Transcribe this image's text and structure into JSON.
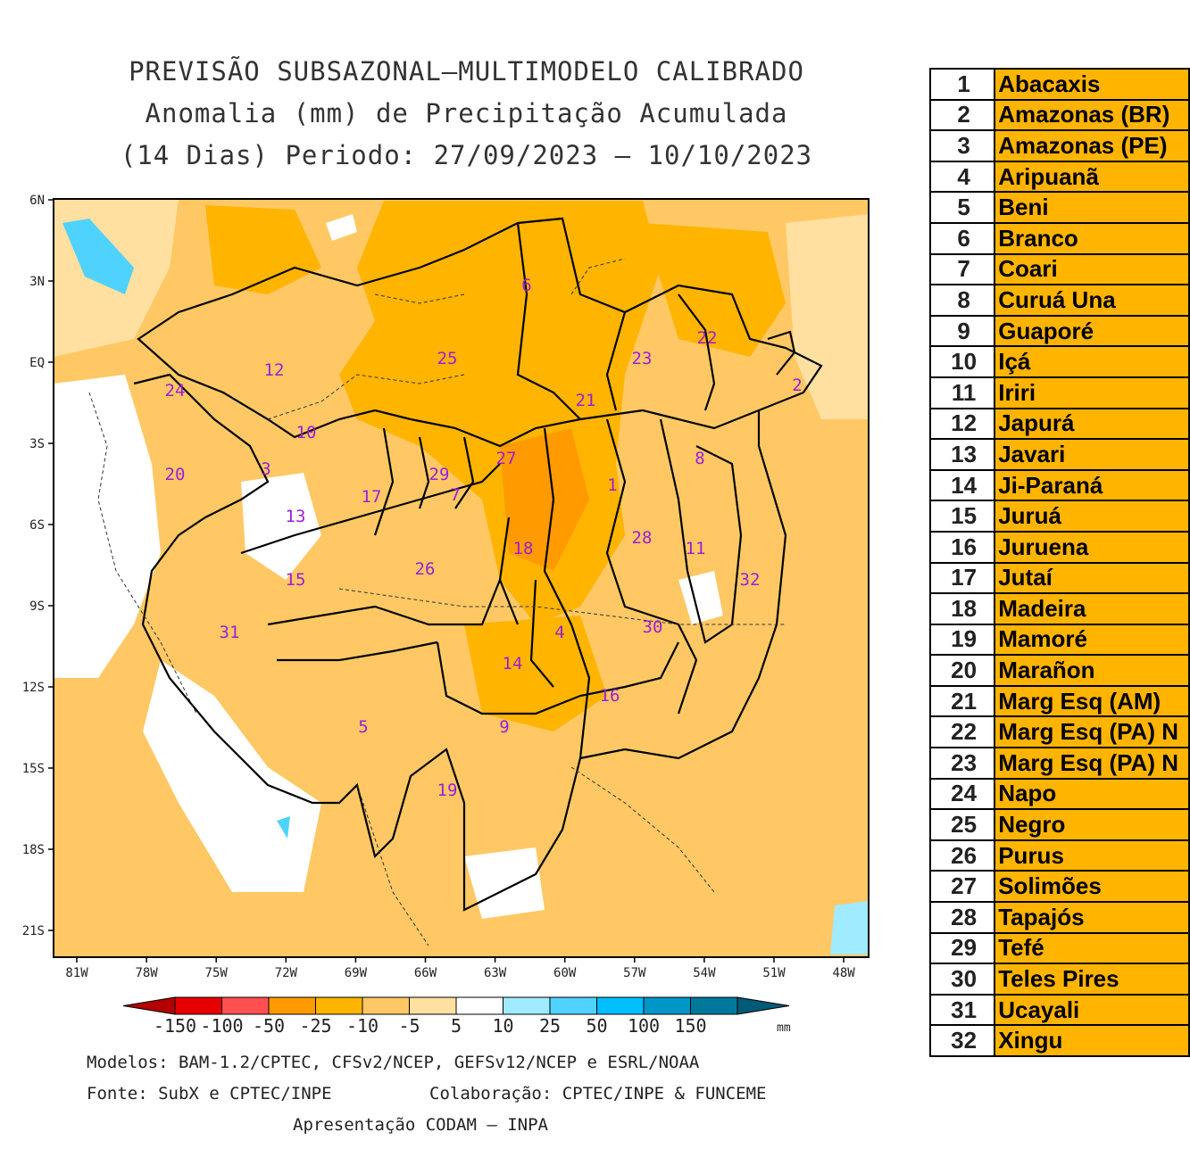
{
  "title": {
    "line1": "PREVISÃO SUBSAZONAL–MULTIMODELO CALIBRADO",
    "line2": "Anomalia (mm) de Precipitação Acumulada",
    "line3": "(14 Dias) Periodo: 27/09/2023 – 10/10/2023"
  },
  "map": {
    "lat_labels": [
      "6N",
      "3N",
      "EQ",
      "3S",
      "6S",
      "9S",
      "12S",
      "15S",
      "18S",
      "21S"
    ],
    "lon_labels": [
      "81W",
      "78W",
      "75W",
      "72W",
      "69W",
      "66W",
      "63W",
      "60W",
      "57W",
      "54W",
      "51W",
      "48W"
    ],
    "basin_labels": [
      "1",
      "2",
      "3",
      "4",
      "5",
      "6",
      "7",
      "8",
      "9",
      "10",
      "11",
      "12",
      "13",
      "14",
      "15",
      "16",
      "17",
      "18",
      "19",
      "20",
      "21",
      "22",
      "23",
      "24",
      "25",
      "26",
      "27",
      "28",
      "29",
      "30",
      "31",
      "32"
    ],
    "label_color": "#9B1FD6"
  },
  "colorbar": {
    "ticks": [
      "-150",
      "-100",
      "-50",
      "-25",
      "-10",
      "-5",
      "5",
      "10",
      "25",
      "50",
      "100",
      "150"
    ],
    "unit": "mm",
    "colors": [
      "#B40000",
      "#E60000",
      "#FF5050",
      "#FF9A00",
      "#FFB400",
      "#FFC864",
      "#FFE0A0",
      "#FFFFFF",
      "#A0EBFF",
      "#50D2FF",
      "#00BEFF",
      "#0096C8",
      "#00789C",
      "#005A78"
    ]
  },
  "footer": {
    "models": "Modelos: BAM-1.2/CPTEC, CFSv2/NCEP, GEFSv12/NCEP e ESRL/NOAA",
    "source": "Fonte: SubX e CPTEC/INPE",
    "collab": "Colaboração: CPTEC/INPE & FUNCEME",
    "presentation": "Apresentação CODAM – INPA"
  },
  "legend": [
    {
      "num": "1",
      "name": "Abacaxis"
    },
    {
      "num": "2",
      "name": "Amazonas (BR)"
    },
    {
      "num": "3",
      "name": "Amazonas (PE)"
    },
    {
      "num": "4",
      "name": "Aripuanã"
    },
    {
      "num": "5",
      "name": "Beni"
    },
    {
      "num": "6",
      "name": "Branco"
    },
    {
      "num": "7",
      "name": "Coari"
    },
    {
      "num": "8",
      "name": "Curuá Una"
    },
    {
      "num": "9",
      "name": "Guaporé"
    },
    {
      "num": "10",
      "name": "Içá"
    },
    {
      "num": "11",
      "name": "Iriri"
    },
    {
      "num": "12",
      "name": "Japurá"
    },
    {
      "num": "13",
      "name": "Javari"
    },
    {
      "num": "14",
      "name": "Ji-Paraná"
    },
    {
      "num": "15",
      "name": "Juruá"
    },
    {
      "num": "16",
      "name": "Juruena"
    },
    {
      "num": "17",
      "name": "Jutaí"
    },
    {
      "num": "18",
      "name": "Madeira"
    },
    {
      "num": "19",
      "name": "Mamoré"
    },
    {
      "num": "20",
      "name": "Marañon"
    },
    {
      "num": "21",
      "name": "Marg Esq (AM)"
    },
    {
      "num": "22",
      "name": "Marg Esq (PA) N"
    },
    {
      "num": "23",
      "name": "Marg Esq (PA) N"
    },
    {
      "num": "24",
      "name": "Napo"
    },
    {
      "num": "25",
      "name": "Negro"
    },
    {
      "num": "26",
      "name": "Purus"
    },
    {
      "num": "27",
      "name": "Solimões"
    },
    {
      "num": "28",
      "name": "Tapajós"
    },
    {
      "num": "29",
      "name": "Tefé"
    },
    {
      "num": "30",
      "name": "Teles Pires"
    },
    {
      "num": "31",
      "name": "Ucayali"
    },
    {
      "num": "32",
      "name": "Xingu"
    }
  ]
}
